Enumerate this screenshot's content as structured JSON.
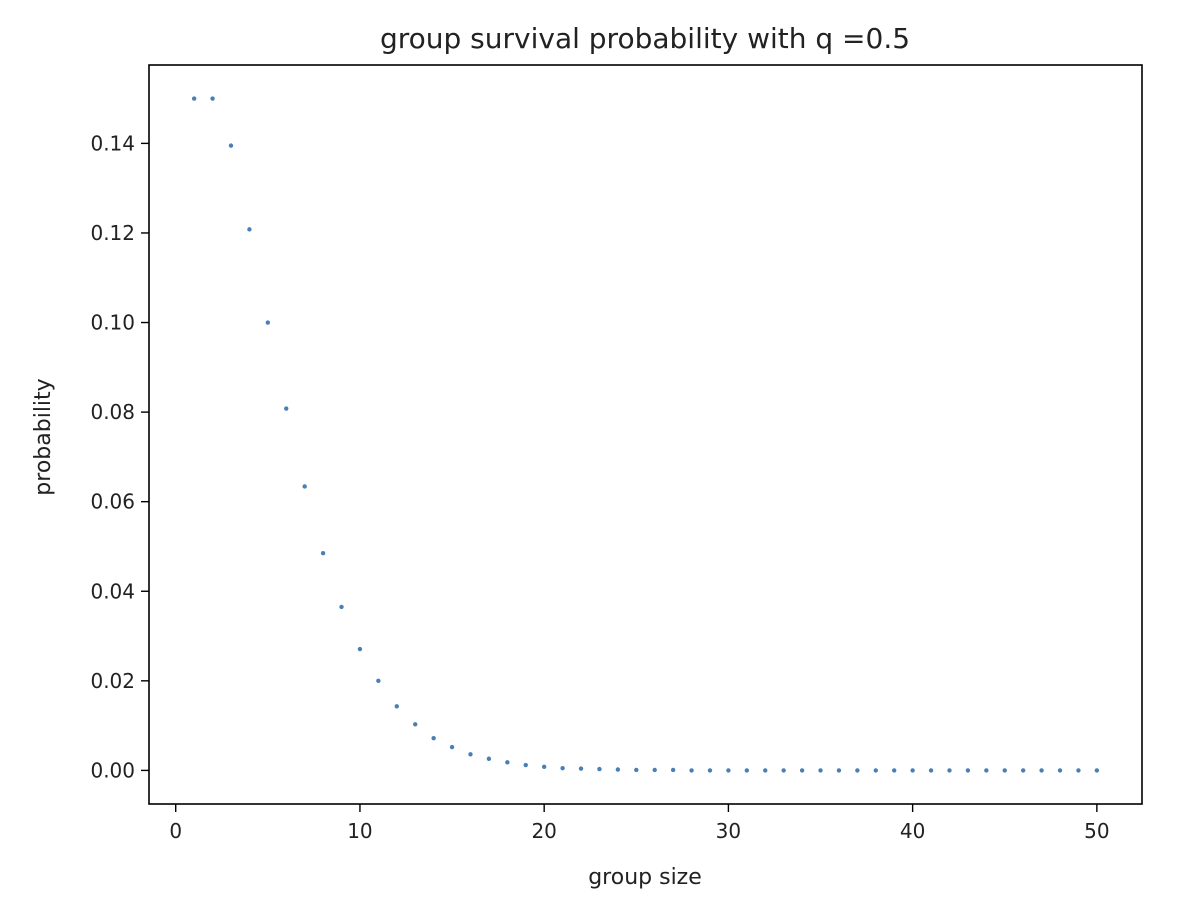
{
  "chart_data": {
    "type": "scatter",
    "title": "group survival probability with q =0.5",
    "xlabel": "group size",
    "ylabel": "probability",
    "xlim": [
      -1.45,
      52.45
    ],
    "ylim": [
      -0.0075,
      0.1575
    ],
    "xticks": [
      0,
      10,
      20,
      30,
      40,
      50
    ],
    "xtick_labels": [
      "0",
      "10",
      "20",
      "30",
      "40",
      "50"
    ],
    "yticks": [
      0.0,
      0.02,
      0.04,
      0.06,
      0.08,
      0.1,
      0.12,
      0.14
    ],
    "ytick_labels": [
      "0.00",
      "0.02",
      "0.04",
      "0.06",
      "0.08",
      "0.10",
      "0.12",
      "0.14"
    ],
    "grid": false,
    "marker_color": "#4a7fb5",
    "series": [
      {
        "x": [
          1,
          2,
          3,
          4,
          5,
          6,
          7,
          8,
          9,
          10,
          11,
          12,
          13,
          14,
          15,
          16,
          17,
          18,
          19,
          20,
          21,
          22,
          23,
          24,
          25,
          26,
          27,
          28,
          29,
          30,
          31,
          32,
          33,
          34,
          35,
          36,
          37,
          38,
          39,
          40,
          41,
          42,
          43,
          44,
          45,
          46,
          47,
          48,
          49,
          50
        ],
        "y": [
          0.15,
          0.15,
          0.1395,
          0.1208,
          0.1,
          0.0808,
          0.0634,
          0.0485,
          0.0365,
          0.0271,
          0.02,
          0.0143,
          0.0103,
          0.0072,
          0.0052,
          0.0036,
          0.0026,
          0.0018,
          0.0012,
          0.0008,
          0.0005,
          0.0004,
          0.0003,
          0.0002,
          0.0001,
          0.0001,
          0.0001,
          0.0,
          0.0,
          0.0,
          0.0,
          0.0,
          0.0,
          0.0,
          0.0,
          0.0,
          0.0,
          0.0,
          0.0,
          0.0,
          0.0,
          0.0,
          0.0,
          0.0,
          0.0,
          0.0,
          0.0,
          0.0,
          0.0,
          0.0
        ]
      }
    ]
  }
}
